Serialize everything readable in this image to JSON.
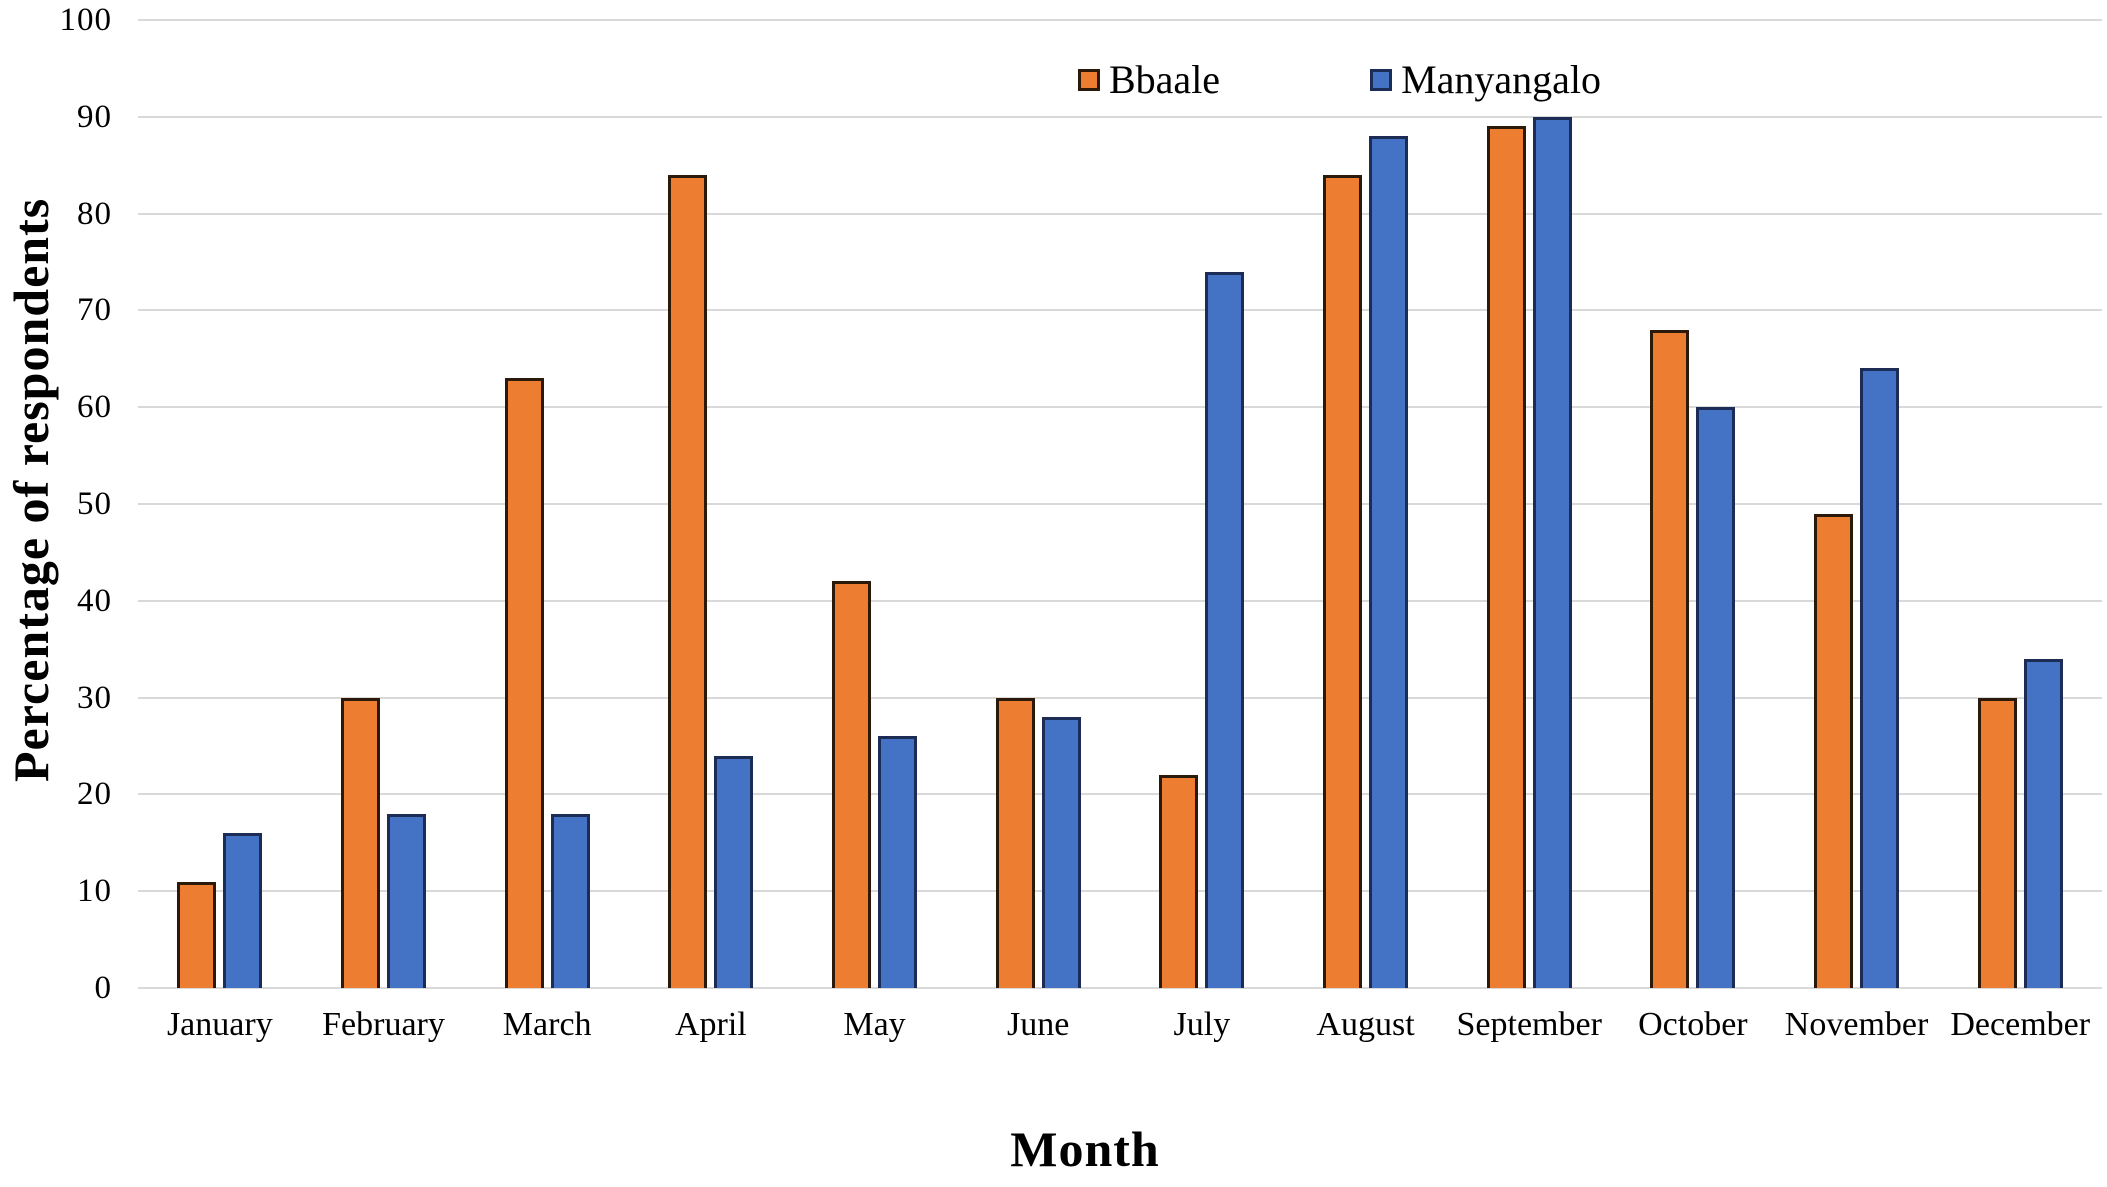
{
  "figure": {
    "background_color": "#ffffff",
    "gridline_color": "#d9d9d9",
    "text_color": "#000000"
  },
  "chart_data": {
    "type": "bar",
    "title": "",
    "xlabel": "Month",
    "ylabel": "Percentage of respondents",
    "categories": [
      "January",
      "February",
      "March",
      "April",
      "May",
      "June",
      "July",
      "August",
      "September",
      "October",
      "November",
      "December"
    ],
    "series": [
      {
        "name": "Bbaale",
        "color": "#ED7D31",
        "border_color": "#2B1A0A",
        "values": [
          11,
          30,
          63,
          84,
          42,
          30,
          22,
          84,
          89,
          68,
          49,
          30
        ]
      },
      {
        "name": "Manyangalo",
        "color": "#4472C4",
        "border_color": "#1C2C54",
        "values": [
          16,
          18,
          18,
          24,
          26,
          28,
          74,
          88,
          90,
          60,
          64,
          34
        ]
      }
    ],
    "ylim": [
      0,
      100
    ],
    "ytick_step": 10,
    "grid": "horizontal",
    "legend_position": "top-center",
    "legend_labels": [
      "Bbaale",
      "Manyangalo"
    ]
  }
}
